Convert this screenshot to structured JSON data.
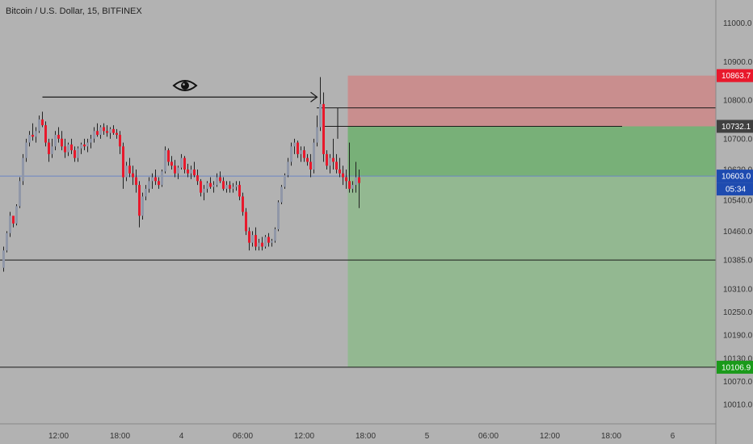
{
  "header": {
    "title": "Bitcoin / U.S. Dollar, 15, BITFINEX"
  },
  "chart_data": {
    "type": "candlestick",
    "ylim": [
      9960,
      11060
    ],
    "y_ticks": [
      11000.0,
      10900.0,
      10800.0,
      10700.0,
      10620.0,
      10540.0,
      10460.0,
      10385.0,
      10310.0,
      10250.0,
      10190.0,
      10130.0,
      10070.0,
      10010.0
    ],
    "x_ticks": [
      {
        "label": "12:00",
        "i": 17
      },
      {
        "label": "18:00",
        "i": 36
      },
      {
        "label": "4",
        "i": 55
      },
      {
        "label": "06:00",
        "i": 74
      },
      {
        "label": "12:00",
        "i": 93
      },
      {
        "label": "18:00",
        "i": 112
      },
      {
        "label": "5",
        "i": 131
      },
      {
        "label": "06:00",
        "i": 150
      },
      {
        "label": "12:00",
        "i": 169
      },
      {
        "label": "18:00",
        "i": 188
      },
      {
        "label": "6",
        "i": 207
      }
    ],
    "candles": [
      [
        10365,
        10420,
        10355,
        10410
      ],
      [
        10410,
        10460,
        10405,
        10455
      ],
      [
        10455,
        10510,
        10445,
        10500
      ],
      [
        10500,
        10490,
        10470,
        10480
      ],
      [
        10480,
        10530,
        10475,
        10525
      ],
      [
        10525,
        10600,
        10520,
        10590
      ],
      [
        10590,
        10660,
        10580,
        10650
      ],
      [
        10650,
        10700,
        10640,
        10690
      ],
      [
        10690,
        10720,
        10680,
        10710
      ],
      [
        10710,
        10740,
        10695,
        10705
      ],
      [
        10705,
        10730,
        10690,
        10720
      ],
      [
        10720,
        10760,
        10715,
        10750
      ],
      [
        10750,
        10770,
        10730,
        10735
      ],
      [
        10735,
        10745,
        10680,
        10690
      ],
      [
        10690,
        10700,
        10640,
        10660
      ],
      [
        10660,
        10700,
        10650,
        10680
      ],
      [
        10680,
        10720,
        10670,
        10710
      ],
      [
        10710,
        10730,
        10690,
        10700
      ],
      [
        10700,
        10720,
        10670,
        10680
      ],
      [
        10680,
        10700,
        10650,
        10665
      ],
      [
        10665,
        10690,
        10655,
        10685
      ],
      [
        10685,
        10700,
        10660,
        10670
      ],
      [
        10670,
        10680,
        10640,
        10650
      ],
      [
        10650,
        10680,
        10640,
        10675
      ],
      [
        10675,
        10690,
        10660,
        10685
      ],
      [
        10685,
        10700,
        10670,
        10680
      ],
      [
        10680,
        10700,
        10665,
        10690
      ],
      [
        10690,
        10710,
        10675,
        10700
      ],
      [
        10700,
        10730,
        10690,
        10720
      ],
      [
        10720,
        10740,
        10705,
        10710
      ],
      [
        10710,
        10735,
        10700,
        10730
      ],
      [
        10730,
        10740,
        10710,
        10720
      ],
      [
        10720,
        10735,
        10705,
        10715
      ],
      [
        10715,
        10730,
        10700,
        10725
      ],
      [
        10725,
        10735,
        10710,
        10715
      ],
      [
        10715,
        10725,
        10700,
        10710
      ],
      [
        10710,
        10720,
        10660,
        10680
      ],
      [
        10680,
        10690,
        10570,
        10600
      ],
      [
        10600,
        10640,
        10590,
        10630
      ],
      [
        10630,
        10650,
        10600,
        10610
      ],
      [
        10610,
        10630,
        10580,
        10600
      ],
      [
        10600,
        10620,
        10560,
        10580
      ],
      [
        10580,
        10590,
        10470,
        10500
      ],
      [
        10500,
        10560,
        10490,
        10550
      ],
      [
        10550,
        10580,
        10540,
        10570
      ],
      [
        10570,
        10600,
        10560,
        10590
      ],
      [
        10590,
        10610,
        10570,
        10600
      ],
      [
        10600,
        10620,
        10580,
        10590
      ],
      [
        10590,
        10600,
        10570,
        10580
      ],
      [
        10580,
        10620,
        10575,
        10615
      ],
      [
        10615,
        10680,
        10610,
        10670
      ],
      [
        10670,
        10675,
        10630,
        10640
      ],
      [
        10640,
        10655,
        10620,
        10630
      ],
      [
        10630,
        10645,
        10600,
        10610
      ],
      [
        10610,
        10630,
        10595,
        10625
      ],
      [
        10625,
        10660,
        10620,
        10650
      ],
      [
        10650,
        10655,
        10610,
        10620
      ],
      [
        10620,
        10635,
        10600,
        10610
      ],
      [
        10610,
        10630,
        10595,
        10620
      ],
      [
        10620,
        10640,
        10600,
        10605
      ],
      [
        10605,
        10620,
        10580,
        10590
      ],
      [
        10590,
        10595,
        10550,
        10560
      ],
      [
        10560,
        10580,
        10540,
        10570
      ],
      [
        10570,
        10590,
        10560,
        10585
      ],
      [
        10585,
        10600,
        10570,
        10575
      ],
      [
        10575,
        10590,
        10560,
        10580
      ],
      [
        10580,
        10610,
        10575,
        10600
      ],
      [
        10600,
        10615,
        10585,
        10590
      ],
      [
        10590,
        10600,
        10565,
        10570
      ],
      [
        10570,
        10590,
        10560,
        10580
      ],
      [
        10580,
        10590,
        10560,
        10570
      ],
      [
        10570,
        10585,
        10560,
        10575
      ],
      [
        10575,
        10590,
        10565,
        10580
      ],
      [
        10580,
        10590,
        10540,
        10550
      ],
      [
        10550,
        10560,
        10500,
        10510
      ],
      [
        10510,
        10520,
        10450,
        10460
      ],
      [
        10460,
        10470,
        10410,
        10430
      ],
      [
        10430,
        10460,
        10420,
        10450
      ],
      [
        10450,
        10470,
        10410,
        10420
      ],
      [
        10420,
        10440,
        10410,
        10430
      ],
      [
        10430,
        10445,
        10410,
        10420
      ],
      [
        10420,
        10450,
        10415,
        10445
      ],
      [
        10445,
        10455,
        10420,
        10430
      ],
      [
        10430,
        10440,
        10420,
        10435
      ],
      [
        10435,
        10470,
        10430,
        10465
      ],
      [
        10465,
        10540,
        10460,
        10535
      ],
      [
        10535,
        10580,
        10530,
        10575
      ],
      [
        10575,
        10610,
        10570,
        10605
      ],
      [
        10605,
        10650,
        10600,
        10640
      ],
      [
        10640,
        10690,
        10630,
        10680
      ],
      [
        10680,
        10700,
        10660,
        10690
      ],
      [
        10690,
        10695,
        10650,
        10660
      ],
      [
        10660,
        10680,
        10640,
        10670
      ],
      [
        10670,
        10680,
        10640,
        10650
      ],
      [
        10650,
        10660,
        10630,
        10640
      ],
      [
        10640,
        10660,
        10600,
        10620
      ],
      [
        10620,
        10700,
        10610,
        10690
      ],
      [
        10690,
        10760,
        10680,
        10730
      ],
      [
        10730,
        10860,
        10720,
        10790
      ],
      [
        10790,
        10820,
        10640,
        10660
      ],
      [
        10660,
        10670,
        10620,
        10630
      ],
      [
        10630,
        10660,
        10610,
        10650
      ],
      [
        10650,
        10700,
        10620,
        10640
      ],
      [
        10640,
        10660,
        10610,
        10620
      ],
      [
        10620,
        10650,
        10600,
        10610
      ],
      [
        10610,
        10630,
        10580,
        10600
      ],
      [
        10600,
        10620,
        10570,
        10590
      ],
      [
        10590,
        10690,
        10560,
        10570
      ],
      [
        10570,
        10590,
        10560,
        10580
      ],
      [
        10580,
        10640,
        10560,
        10600
      ],
      [
        10600,
        10620,
        10520,
        10585
      ]
    ],
    "candle_start_x": 4.5,
    "candle_spacing": 4.0,
    "colors": {
      "up": "#9097a8",
      "down": "#e8192c",
      "wick": "#222222",
      "stop_zone": "#c98e8e",
      "target_zone": "#78b078",
      "target_zone_light": "#93b891",
      "price_line": "#6b86c4",
      "line": "#1a1a1a"
    },
    "position": {
      "entry": 10603.0,
      "stop": 10863.7,
      "target": 10106.9,
      "limit": 10732.1,
      "start_i": 106
    },
    "hlines": [
      10385.0,
      10106.9,
      10780.0,
      10732.1
    ],
    "arrow": {
      "y": 10808,
      "from_i": 12,
      "to_i": 97,
      "icon": "eye-icon"
    },
    "price_labels": [
      {
        "value": "10863.7",
        "price": 10863.7,
        "color": "#e8192c"
      },
      {
        "value": "10732.1",
        "price": 10732.1,
        "color": "#404040"
      },
      {
        "value": "10603.0",
        "price": 10603.0,
        "color": "#1e4bb0"
      },
      {
        "value": "10106.9",
        "price": 10106.9,
        "color": "#1a9a1a"
      }
    ],
    "countdown": {
      "value": "05:34",
      "color": "#1e4bb0"
    }
  }
}
